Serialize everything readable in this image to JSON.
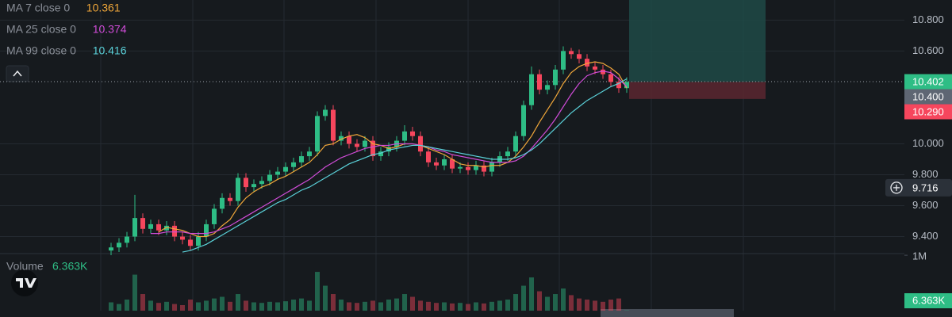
{
  "chart_data": {
    "type": "candlestick",
    "up_color": "#2ebd85",
    "down_color": "#f6465d",
    "grid": true,
    "ylim": [
      9.29,
      10.93
    ],
    "yticks": [
      {
        "value": 9.4,
        "label": "9.400"
      },
      {
        "value": 9.6,
        "label": "9.600"
      },
      {
        "value": 9.8,
        "label": "9.800"
      },
      {
        "value": 10.0,
        "label": "10.000"
      },
      {
        "value": 10.6,
        "label": "10.600"
      },
      {
        "value": 10.8,
        "label": "10.800"
      }
    ],
    "open": [
      9.31,
      9.33,
      9.36,
      9.4,
      9.52,
      9.45,
      9.48,
      9.44,
      9.47,
      9.4,
      9.38,
      9.34,
      9.4,
      9.48,
      9.58,
      9.65,
      9.63,
      9.78,
      9.72,
      9.74,
      9.76,
      9.8,
      9.82,
      9.85,
      9.88,
      9.92,
      9.95,
      10.18,
      10.22,
      10.02,
      10.05,
      10.0,
      9.98,
      10.02,
      9.92,
      9.95,
      9.98,
      10.02,
      10.08,
      10.05,
      9.95,
      9.88,
      9.86,
      9.9,
      9.84,
      9.85,
      9.83,
      9.86,
      9.82,
      9.88,
      9.92,
      9.95,
      10.05,
      10.25,
      10.45,
      10.35,
      10.38,
      10.48,
      10.6,
      10.58,
      10.55,
      10.5,
      10.48,
      10.45,
      10.4,
      10.36
    ],
    "high": [
      9.36,
      9.39,
      9.43,
      9.67,
      9.55,
      9.51,
      9.51,
      9.5,
      9.5,
      9.43,
      9.41,
      9.43,
      9.51,
      9.61,
      9.68,
      9.68,
      9.81,
      9.81,
      9.77,
      9.79,
      9.83,
      9.85,
      9.88,
      9.91,
      9.95,
      9.98,
      10.21,
      10.25,
      10.25,
      10.08,
      10.08,
      10.03,
      10.05,
      10.05,
      9.98,
      10.01,
      10.05,
      10.12,
      10.11,
      10.08,
      9.98,
      9.91,
      9.93,
      9.93,
      9.88,
      9.88,
      9.89,
      9.89,
      9.91,
      9.95,
      9.98,
      10.08,
      10.28,
      10.5,
      10.48,
      10.41,
      10.51,
      10.63,
      10.62,
      10.61,
      10.58,
      10.53,
      10.51,
      10.48,
      10.43,
      10.43
    ],
    "low": [
      9.28,
      9.3,
      9.33,
      9.37,
      9.42,
      9.42,
      9.41,
      9.41,
      9.37,
      9.35,
      9.31,
      9.31,
      9.37,
      9.45,
      9.55,
      9.6,
      9.6,
      9.69,
      9.69,
      9.71,
      9.73,
      9.77,
      9.79,
      9.82,
      9.85,
      9.89,
      9.92,
      10.15,
      9.99,
      9.99,
      9.97,
      9.95,
      9.95,
      9.89,
      9.89,
      9.92,
      9.95,
      9.99,
      10.02,
      9.92,
      9.85,
      9.83,
      9.83,
      9.81,
      9.81,
      9.8,
      9.8,
      9.79,
      9.79,
      9.85,
      9.89,
      9.92,
      10.02,
      10.22,
      10.32,
      10.32,
      10.35,
      10.45,
      10.55,
      10.52,
      10.47,
      10.45,
      10.42,
      10.37,
      10.33,
      10.33
    ],
    "close": [
      9.33,
      9.36,
      9.4,
      9.52,
      9.45,
      9.48,
      9.44,
      9.47,
      9.4,
      9.38,
      9.34,
      9.4,
      9.48,
      9.58,
      9.65,
      9.63,
      9.78,
      9.72,
      9.74,
      9.76,
      9.8,
      9.82,
      9.85,
      9.88,
      9.92,
      9.95,
      10.18,
      10.22,
      10.02,
      10.05,
      10.0,
      9.98,
      10.02,
      9.92,
      9.95,
      9.98,
      10.02,
      10.08,
      10.05,
      9.95,
      9.88,
      9.86,
      9.9,
      9.84,
      9.85,
      9.83,
      9.86,
      9.82,
      9.88,
      9.92,
      9.95,
      10.05,
      10.25,
      10.45,
      10.35,
      10.38,
      10.48,
      10.6,
      10.58,
      10.55,
      10.5,
      10.48,
      10.45,
      10.4,
      10.36,
      10.4
    ],
    "indicators": [
      {
        "name": "MA 7 close 0",
        "color": "#f0a73a",
        "legend_value": {
          "value": 10.361,
          "label": "10.361"
        },
        "values": [
          null,
          null,
          null,
          null,
          null,
          null,
          9.43,
          9.46,
          9.45,
          9.44,
          9.42,
          9.4,
          9.4,
          9.42,
          9.47,
          9.51,
          9.59,
          9.65,
          9.69,
          9.72,
          9.74,
          9.77,
          9.79,
          9.82,
          9.85,
          9.88,
          9.93,
          9.99,
          10.0,
          10.03,
          10.05,
          10.06,
          10.04,
          10.0,
          9.99,
          9.97,
          9.98,
          10.0,
          10.0,
          9.99,
          9.97,
          9.95,
          9.93,
          9.9,
          9.87,
          9.86,
          9.86,
          9.85,
          9.86,
          9.86,
          9.88,
          9.92,
          9.98,
          10.05,
          10.14,
          10.22,
          10.3,
          10.39,
          10.46,
          10.5,
          10.52,
          10.53,
          10.52,
          10.49,
          10.45,
          10.36
        ]
      },
      {
        "name": "MA 25 close 0",
        "color": "#d04cd8",
        "legend_value": {
          "value": 10.374,
          "label": "10.374"
        },
        "values": [
          null,
          null,
          null,
          null,
          null,
          9.42,
          9.42,
          9.43,
          9.43,
          9.43,
          9.42,
          9.42,
          9.42,
          9.43,
          9.45,
          9.47,
          9.5,
          9.53,
          9.56,
          9.59,
          9.62,
          9.65,
          9.68,
          9.71,
          9.74,
          9.77,
          9.81,
          9.85,
          9.88,
          9.91,
          9.93,
          9.95,
          9.97,
          9.98,
          9.99,
          9.99,
          10.0,
          10.0,
          10.0,
          9.99,
          9.98,
          9.96,
          9.95,
          9.93,
          9.92,
          9.91,
          9.9,
          9.89,
          9.88,
          9.88,
          9.88,
          9.89,
          9.92,
          9.97,
          10.03,
          10.09,
          10.16,
          10.24,
          10.32,
          10.39,
          10.44,
          10.46,
          10.47,
          10.46,
          10.42,
          10.37
        ]
      },
      {
        "name": "MA 99 close 0",
        "color": "#5ad0d8",
        "legend_value": {
          "value": 10.416,
          "label": "10.416"
        },
        "values": [
          null,
          null,
          null,
          null,
          null,
          null,
          null,
          null,
          null,
          9.3,
          9.31,
          9.33,
          9.35,
          9.38,
          9.41,
          9.44,
          9.47,
          9.5,
          9.53,
          9.56,
          9.59,
          9.62,
          9.64,
          9.67,
          9.7,
          9.72,
          9.75,
          9.78,
          9.81,
          9.84,
          9.87,
          9.89,
          9.91,
          9.93,
          9.94,
          9.96,
          9.97,
          9.98,
          9.99,
          9.99,
          9.98,
          9.97,
          9.96,
          9.95,
          9.94,
          9.93,
          9.92,
          9.91,
          9.9,
          9.9,
          9.9,
          9.91,
          9.93,
          9.96,
          10.0,
          10.05,
          10.1,
          10.15,
          10.2,
          10.24,
          10.28,
          10.31,
          10.34,
          10.37,
          10.39,
          10.42
        ]
      }
    ],
    "current_price": {
      "value": 10.402,
      "label": "10.402"
    },
    "entry_price": {
      "value": 10.4,
      "label": "10.400"
    },
    "stop_price": {
      "value": 10.29,
      "label": "10.290"
    },
    "crosshair_price": {
      "value": 9.716,
      "label": "9.716"
    },
    "volume": {
      "title": "Volume",
      "ylim": [
        0,
        1030000
      ],
      "yticks": [
        {
          "value": 1000000,
          "label": "1M"
        }
      ],
      "last_label": "6.363K",
      "values": [
        150000,
        120000,
        200000,
        650000,
        300000,
        180000,
        140000,
        160000,
        120000,
        100000,
        200000,
        150000,
        180000,
        220000,
        250000,
        160000,
        300000,
        180000,
        150000,
        140000,
        160000,
        150000,
        170000,
        200000,
        220000,
        180000,
        700000,
        450000,
        300000,
        200000,
        150000,
        140000,
        160000,
        180000,
        150000,
        200000,
        220000,
        300000,
        250000,
        180000,
        160000,
        140000,
        150000,
        130000,
        140000,
        120000,
        150000,
        130000,
        160000,
        180000,
        200000,
        300000,
        450000,
        600000,
        350000,
        250000,
        300000,
        400000,
        280000,
        220000,
        200000,
        180000,
        160000,
        200000,
        220000,
        6363
      ]
    }
  }
}
